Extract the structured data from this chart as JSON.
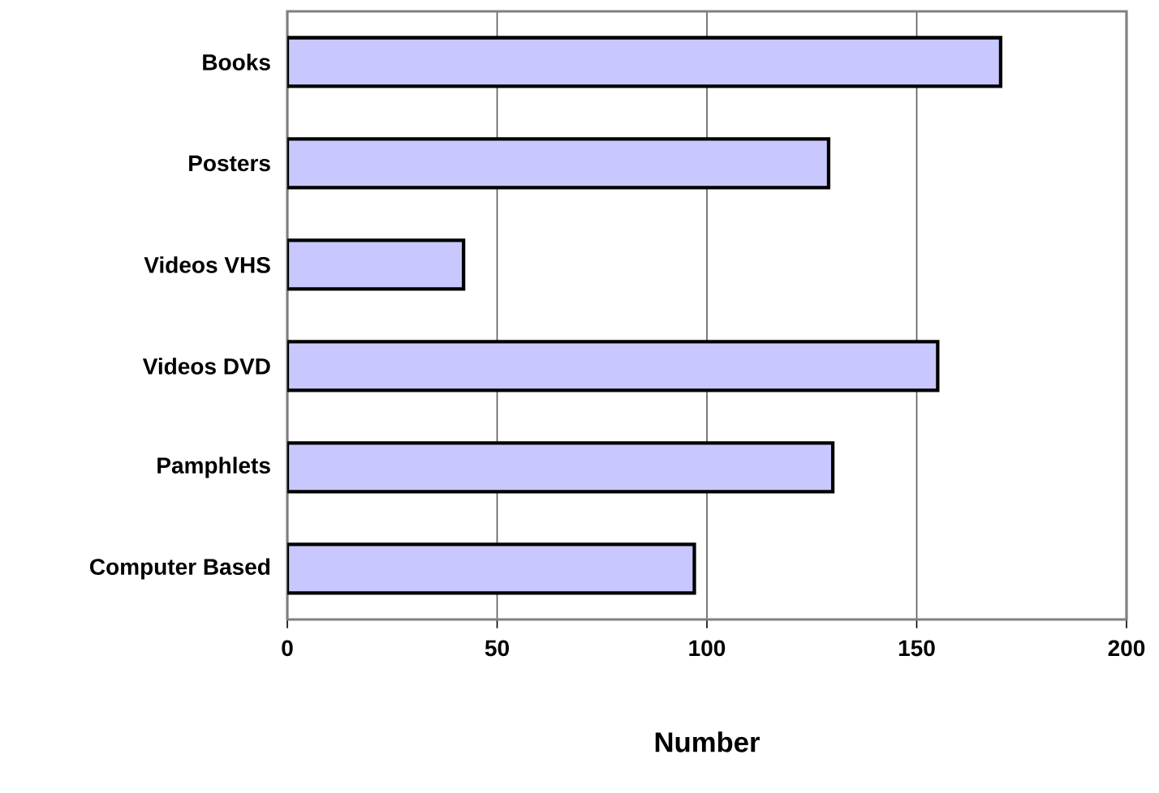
{
  "chart_data": {
    "type": "bar",
    "orientation": "horizontal",
    "xlabel": "Number",
    "categories": [
      "Books",
      "Posters",
      "Videos VHS",
      "Videos DVD",
      "Pamphlets",
      "Computer Based"
    ],
    "values": [
      170,
      129,
      42,
      155,
      130,
      97
    ],
    "color": "#c8c8ff",
    "xlim": [
      0,
      200
    ],
    "xticks": [
      0,
      50,
      100,
      150,
      200
    ],
    "grid": "x"
  }
}
